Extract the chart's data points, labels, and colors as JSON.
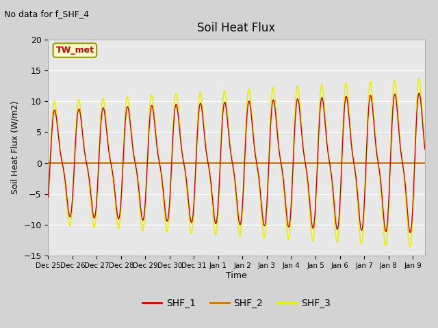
{
  "title": "Soil Heat Flux",
  "ylabel": "Soil Heat Flux (W/m2)",
  "xlabel": "Time",
  "no_data_text": "No data for f_SHF_4",
  "tw_met_label": "TW_met",
  "ylim": [
    -15,
    20
  ],
  "yticks": [
    -15,
    -10,
    -5,
    0,
    5,
    10,
    15,
    20
  ],
  "fig_bg_color": "#d3d3d3",
  "plot_bg_color": "#e8e8e8",
  "shf1_color": "#cc0000",
  "shf2_color": "#cc7700",
  "shf3_color": "#eeee00",
  "x_tick_labels": [
    "Dec 25",
    "Dec 26",
    "Dec 27",
    "Dec 28",
    "Dec 29",
    "Dec 30",
    "Dec 31",
    "Jan 1",
    "Jan 2",
    "Jan 3",
    "Jan 4",
    "Jan 5",
    "Jan 6",
    "Jan 7",
    "Jan 8",
    "Jan 9"
  ],
  "n_points": 1500,
  "n_days": 15.5
}
